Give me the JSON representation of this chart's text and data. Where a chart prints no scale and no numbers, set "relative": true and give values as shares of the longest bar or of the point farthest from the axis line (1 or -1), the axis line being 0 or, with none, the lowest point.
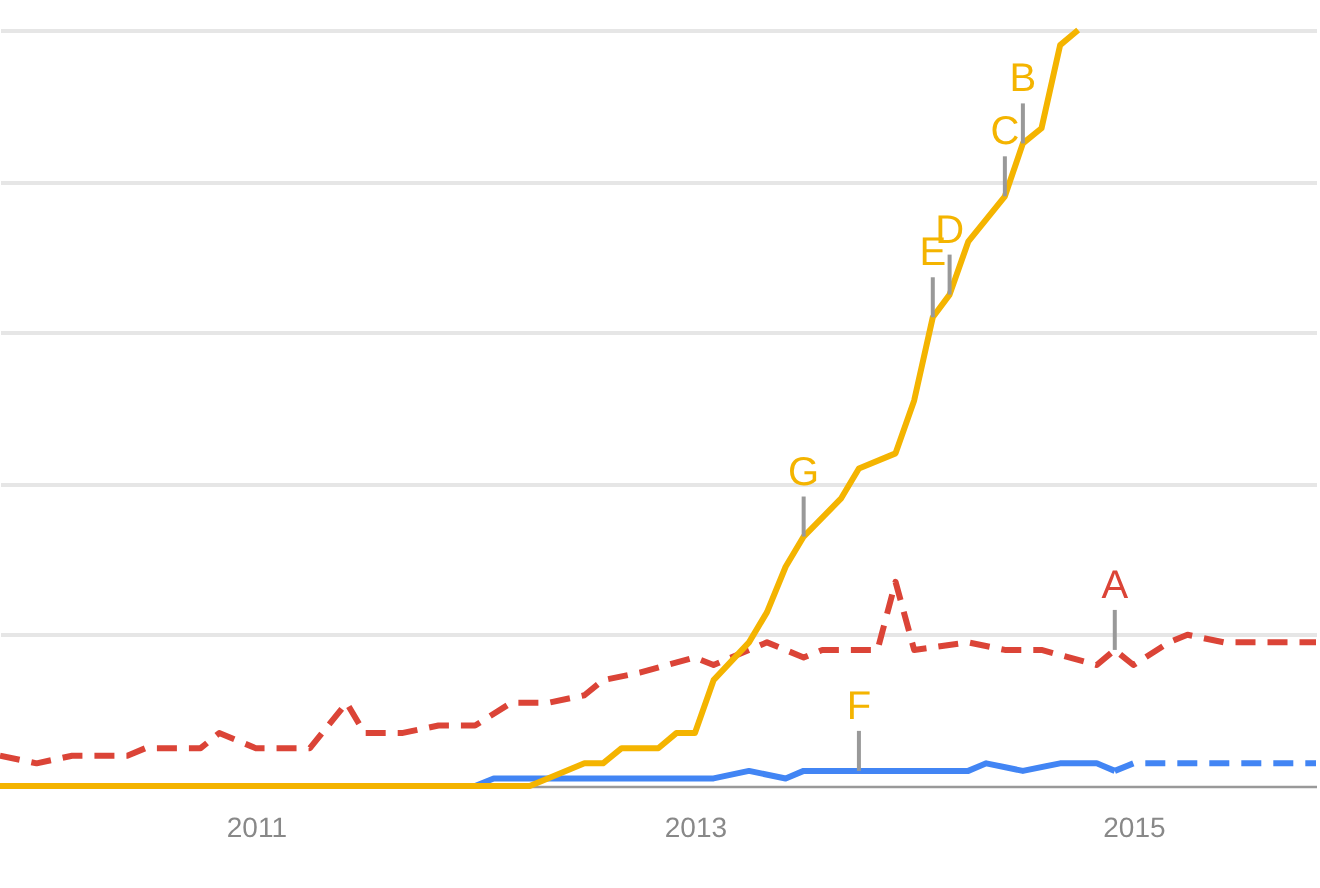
{
  "chart_data": {
    "type": "line",
    "relative": true,
    "grid": "y",
    "xlim": [
      "2009-11",
      "2015-11"
    ],
    "xticks": [
      "2011",
      "2013",
      "2015"
    ],
    "series": [
      {
        "color": "#db4437",
        "line_style": "dashed",
        "x": [
          "2009-11",
          "2010-01",
          "2010-03",
          "2010-06",
          "2010-07",
          "2010-10",
          "2010-11",
          "2011-01",
          "2011-02",
          "2011-04",
          "2011-06",
          "2011-07",
          "2011-09",
          "2011-11",
          "2012-01",
          "2012-03",
          "2012-05",
          "2012-07",
          "2012-08",
          "2012-10",
          "2013-01",
          "2013-02",
          "2013-05",
          "2013-07",
          "2013-08",
          "2013-11",
          "2013-12",
          "2014-01",
          "2014-04",
          "2014-06",
          "2014-08",
          "2014-11",
          "2014-12",
          "2015-01",
          "2015-03",
          "2015-04",
          "2015-06",
          "2015-09",
          "2015-11"
        ],
        "values": [
          0.04,
          0.03,
          0.04,
          0.04,
          0.05,
          0.05,
          0.07,
          0.05,
          0.05,
          0.05,
          0.11,
          0.07,
          0.07,
          0.08,
          0.08,
          0.11,
          0.11,
          0.12,
          0.14,
          0.15,
          0.17,
          0.16,
          0.19,
          0.17,
          0.18,
          0.18,
          0.27,
          0.18,
          0.19,
          0.18,
          0.18,
          0.16,
          0.18,
          0.16,
          0.19,
          0.2,
          0.19,
          0.19,
          0.19
        ]
      },
      {
        "color": "#4285f4",
        "line_style": "solid",
        "x": [
          "2009-11",
          "2012-01",
          "2012-02",
          "2013-02",
          "2013-04",
          "2013-06",
          "2013-07",
          "2014-04",
          "2014-05",
          "2014-07",
          "2014-09",
          "2014-11",
          "2014-12"
        ],
        "values": [
          0,
          0,
          0.01,
          0.01,
          0.02,
          0.01,
          0.02,
          0.02,
          0.03,
          0.02,
          0.03,
          0.03,
          0.02
        ]
      },
      {
        "color": "#4285f4",
        "line_style": "dashed",
        "x": [
          "2014-12",
          "2015-01",
          "2015-11"
        ],
        "values": [
          0.02,
          0.03,
          0.03
        ]
      },
      {
        "color": "#f4b400",
        "line_style": "solid",
        "x": [
          "2009-11",
          "2012-04",
          "2012-05",
          "2012-07",
          "2012-08",
          "2012-09",
          "2012-11",
          "2012-12",
          "2013-01",
          "2013-02",
          "2013-04",
          "2013-05",
          "2013-06",
          "2013-07",
          "2013-09",
          "2013-10",
          "2013-12",
          "2014-01",
          "2014-02",
          "2014-03",
          "2014-04",
          "2014-06",
          "2014-07",
          "2014-08",
          "2014-09",
          "2014-10"
        ],
        "values": [
          0,
          0,
          0.01,
          0.03,
          0.03,
          0.05,
          0.05,
          0.07,
          0.07,
          0.14,
          0.19,
          0.23,
          0.29,
          0.33,
          0.38,
          0.42,
          0.44,
          0.51,
          0.62,
          0.65,
          0.72,
          0.78,
          0.85,
          0.87,
          0.98,
          1
        ]
      }
    ],
    "annotations": [
      {
        "text": "A",
        "x": "2014-12",
        "y": 0.18
      },
      {
        "text": "B",
        "x": "2014-07",
        "y": 0.85
      },
      {
        "text": "C",
        "x": "2014-06",
        "y": 0.78
      },
      {
        "text": "D",
        "x": "2014-03",
        "y": 0.65
      },
      {
        "text": "E",
        "x": "2014-02",
        "y": 0.62
      },
      {
        "text": "F",
        "x": "2013-10",
        "y": 0.02
      },
      {
        "text": "G",
        "x": "2013-07",
        "y": 0.33
      }
    ]
  }
}
